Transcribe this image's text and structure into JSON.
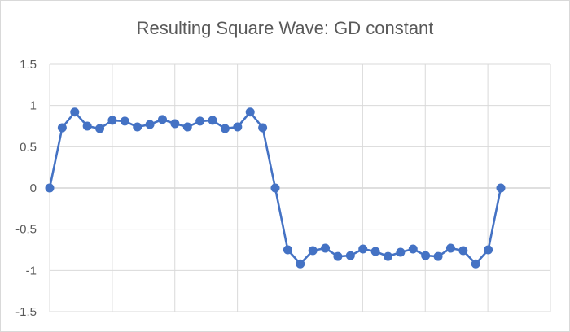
{
  "chart_data": {
    "type": "line",
    "title": "Resulting Square Wave: GD constant",
    "xlabel": "",
    "ylabel": "",
    "ylim": [
      -1.5,
      1.5
    ],
    "yticks": [
      1.5,
      1,
      0.5,
      0,
      -0.5,
      -1,
      -1.5
    ],
    "ytick_labels": [
      "1.5",
      "1",
      "0.5",
      "0",
      "-0.5",
      "-1",
      "-1.5"
    ],
    "grid": true,
    "legend": "none",
    "series": [
      {
        "color": "#4472c4",
        "values": [
          0,
          0.73,
          0.92,
          0.75,
          0.72,
          0.82,
          0.81,
          0.74,
          0.77,
          0.83,
          0.78,
          0.74,
          0.81,
          0.82,
          0.72,
          0.74,
          0.92,
          0.73,
          0,
          -0.75,
          -0.92,
          -0.76,
          -0.73,
          -0.83,
          -0.82,
          -0.74,
          -0.77,
          -0.83,
          -0.78,
          -0.74,
          -0.82,
          -0.83,
          -0.73,
          -0.76,
          -0.92,
          -0.75,
          0
        ]
      }
    ]
  }
}
